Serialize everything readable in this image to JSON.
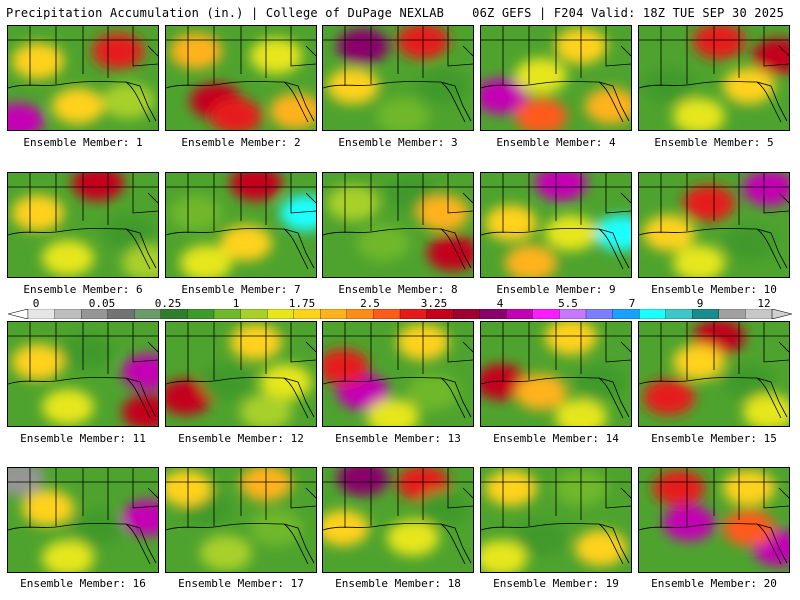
{
  "header": {
    "left_title": "Precipitation Accumulation (in.) | College of DuPage NEXLAB",
    "right_title": "06Z GEFS | F204 Valid: 18Z TUE SEP 30 2025"
  },
  "colorbar": {
    "labels": [
      "0",
      "0.05",
      "0.25",
      "1",
      "1.75",
      "2.5",
      "3.25",
      "4",
      "5.5",
      "7",
      "9",
      "12"
    ],
    "colors": [
      "#e6e6e6",
      "#bdbdbd",
      "#969696",
      "#737373",
      "#6b9a6b",
      "#2f7d2f",
      "#3f9a2c",
      "#6fb82a",
      "#a8d02a",
      "#e6e61a",
      "#ffd21a",
      "#ffb21a",
      "#ff8c1a",
      "#ff5a1a",
      "#e61a1a",
      "#c4001a",
      "#9e0030",
      "#8a006a",
      "#c400b4",
      "#ff1aff",
      "#c878ff",
      "#7d7dff",
      "#1aa0ff",
      "#1affff",
      "#3cc8c8",
      "#1a8c8c",
      "#a0a0a0",
      "#c8c8c8"
    ]
  },
  "panels": [
    {
      "caption": "Ensemble Member: 1",
      "blobs": [
        [
          30,
          35,
          "#ffd21a"
        ],
        [
          110,
          25,
          "#e61a1a"
        ],
        [
          70,
          80,
          "#ffd21a"
        ],
        [
          10,
          95,
          "#c400b4"
        ],
        [
          120,
          75,
          "#a8d02a"
        ]
      ]
    },
    {
      "caption": "Ensemble Member: 2",
      "blobs": [
        [
          50,
          75,
          "#c4001a"
        ],
        [
          30,
          25,
          "#ffb21a"
        ],
        [
          110,
          30,
          "#e6e61a"
        ],
        [
          70,
          90,
          "#e61a1a"
        ],
        [
          130,
          85,
          "#ffb21a"
        ]
      ]
    },
    {
      "caption": "Ensemble Member: 3",
      "blobs": [
        [
          40,
          20,
          "#8a006a"
        ],
        [
          100,
          15,
          "#e61a1a"
        ],
        [
          30,
          60,
          "#ffd21a"
        ],
        [
          120,
          60,
          "#3f9a2c"
        ],
        [
          80,
          90,
          "#6fb82a"
        ]
      ]
    },
    {
      "caption": "Ensemble Member: 4",
      "blobs": [
        [
          20,
          70,
          "#c400b4"
        ],
        [
          100,
          20,
          "#ffd21a"
        ],
        [
          60,
          50,
          "#e6e61a"
        ],
        [
          130,
          80,
          "#ffb21a"
        ],
        [
          60,
          90,
          "#ff5a1a"
        ]
      ]
    },
    {
      "caption": "Ensemble Member: 5",
      "blobs": [
        [
          80,
          15,
          "#e61a1a"
        ],
        [
          30,
          60,
          "#3f9a2c"
        ],
        [
          110,
          60,
          "#ffd21a"
        ],
        [
          60,
          90,
          "#e6e61a"
        ],
        [
          140,
          30,
          "#c4001a"
        ]
      ]
    },
    {
      "caption": "Ensemble Member: 6",
      "blobs": [
        [
          90,
          10,
          "#c4001a"
        ],
        [
          30,
          40,
          "#ffd21a"
        ],
        [
          120,
          60,
          "#3f9a2c"
        ],
        [
          60,
          85,
          "#e6e61a"
        ],
        [
          140,
          90,
          "#a8d02a"
        ]
      ]
    },
    {
      "caption": "Ensemble Member: 7",
      "blobs": [
        [
          140,
          40,
          "#1affff"
        ],
        [
          90,
          10,
          "#c4001a"
        ],
        [
          30,
          40,
          "#6fb82a"
        ],
        [
          80,
          70,
          "#ffd21a"
        ],
        [
          40,
          90,
          "#e6e61a"
        ]
      ]
    },
    {
      "caption": "Ensemble Member: 8",
      "blobs": [
        [
          130,
          80,
          "#c4001a"
        ],
        [
          30,
          30,
          "#a8d02a"
        ],
        [
          90,
          20,
          "#3f9a2c"
        ],
        [
          60,
          70,
          "#6fb82a"
        ],
        [
          120,
          40,
          "#ffb21a"
        ]
      ]
    },
    {
      "caption": "Ensemble Member: 9",
      "blobs": [
        [
          140,
          60,
          "#1affff"
        ],
        [
          80,
          10,
          "#c400b4"
        ],
        [
          30,
          50,
          "#ffd21a"
        ],
        [
          90,
          60,
          "#e6e61a"
        ],
        [
          50,
          90,
          "#ffb21a"
        ]
      ]
    },
    {
      "caption": "Ensemble Member: 10",
      "blobs": [
        [
          130,
          15,
          "#c400b4"
        ],
        [
          70,
          30,
          "#e61a1a"
        ],
        [
          30,
          60,
          "#ffd21a"
        ],
        [
          110,
          70,
          "#3f9a2c"
        ],
        [
          60,
          90,
          "#e6e61a"
        ]
      ]
    },
    {
      "caption": "Ensemble Member: 11",
      "blobs": [
        [
          140,
          50,
          "#c400b4"
        ],
        [
          140,
          90,
          "#c4001a"
        ],
        [
          30,
          40,
          "#ffd21a"
        ],
        [
          80,
          30,
          "#3f9a2c"
        ],
        [
          60,
          85,
          "#e6e61a"
        ]
      ]
    },
    {
      "caption": "Ensemble Member: 12",
      "blobs": [
        [
          20,
          75,
          "#c4001a"
        ],
        [
          90,
          20,
          "#ffd21a"
        ],
        [
          60,
          60,
          "#3f9a2c"
        ],
        [
          120,
          60,
          "#e6e61a"
        ],
        [
          100,
          90,
          "#a8d02a"
        ]
      ]
    },
    {
      "caption": "Ensemble Member: 13",
      "blobs": [
        [
          40,
          70,
          "#c400b4"
        ],
        [
          20,
          45,
          "#e61a1a"
        ],
        [
          100,
          20,
          "#ffd21a"
        ],
        [
          110,
          70,
          "#6fb82a"
        ],
        [
          70,
          95,
          "#e6e61a"
        ]
      ]
    },
    {
      "caption": "Ensemble Member: 14",
      "blobs": [
        [
          20,
          60,
          "#c4001a"
        ],
        [
          90,
          15,
          "#ffd21a"
        ],
        [
          60,
          70,
          "#ffb21a"
        ],
        [
          120,
          60,
          "#3f9a2c"
        ],
        [
          100,
          95,
          "#e6e61a"
        ]
      ]
    },
    {
      "caption": "Ensemble Member: 15",
      "blobs": [
        [
          80,
          15,
          "#c4001a"
        ],
        [
          30,
          75,
          "#e61a1a"
        ],
        [
          110,
          60,
          "#3f9a2c"
        ],
        [
          60,
          40,
          "#ffd21a"
        ],
        [
          130,
          90,
          "#e6e61a"
        ]
      ]
    },
    {
      "caption": "Ensemble Member: 16",
      "blobs": [
        [
          140,
          50,
          "#c400b4"
        ],
        [
          10,
          10,
          "#969696"
        ],
        [
          40,
          40,
          "#ffd21a"
        ],
        [
          90,
          60,
          "#3f9a2c"
        ],
        [
          60,
          90,
          "#e6e61a"
        ]
      ]
    },
    {
      "caption": "Ensemble Member: 17",
      "blobs": [
        [
          100,
          15,
          "#ffb21a"
        ],
        [
          40,
          40,
          "#3f9a2c"
        ],
        [
          110,
          60,
          "#6fb82a"
        ],
        [
          60,
          85,
          "#a8d02a"
        ],
        [
          20,
          20,
          "#ffd21a"
        ]
      ]
    },
    {
      "caption": "Ensemble Member: 18",
      "blobs": [
        [
          40,
          10,
          "#8a006a"
        ],
        [
          100,
          15,
          "#e61a1a"
        ],
        [
          20,
          60,
          "#ffd21a"
        ],
        [
          90,
          70,
          "#e6e61a"
        ],
        [
          120,
          40,
          "#3f9a2c"
        ]
      ]
    },
    {
      "caption": "Ensemble Member: 19",
      "blobs": [
        [
          30,
          20,
          "#ffd21a"
        ],
        [
          100,
          20,
          "#6fb82a"
        ],
        [
          60,
          70,
          "#3f9a2c"
        ],
        [
          120,
          80,
          "#ffd21a"
        ],
        [
          20,
          90,
          "#e6e61a"
        ]
      ]
    },
    {
      "caption": "Ensemble Member: 20",
      "blobs": [
        [
          50,
          55,
          "#c400b4"
        ],
        [
          140,
          80,
          "#c400b4"
        ],
        [
          40,
          20,
          "#e61a1a"
        ],
        [
          110,
          20,
          "#ffd21a"
        ],
        [
          110,
          60,
          "#ff5a1a"
        ]
      ]
    }
  ]
}
